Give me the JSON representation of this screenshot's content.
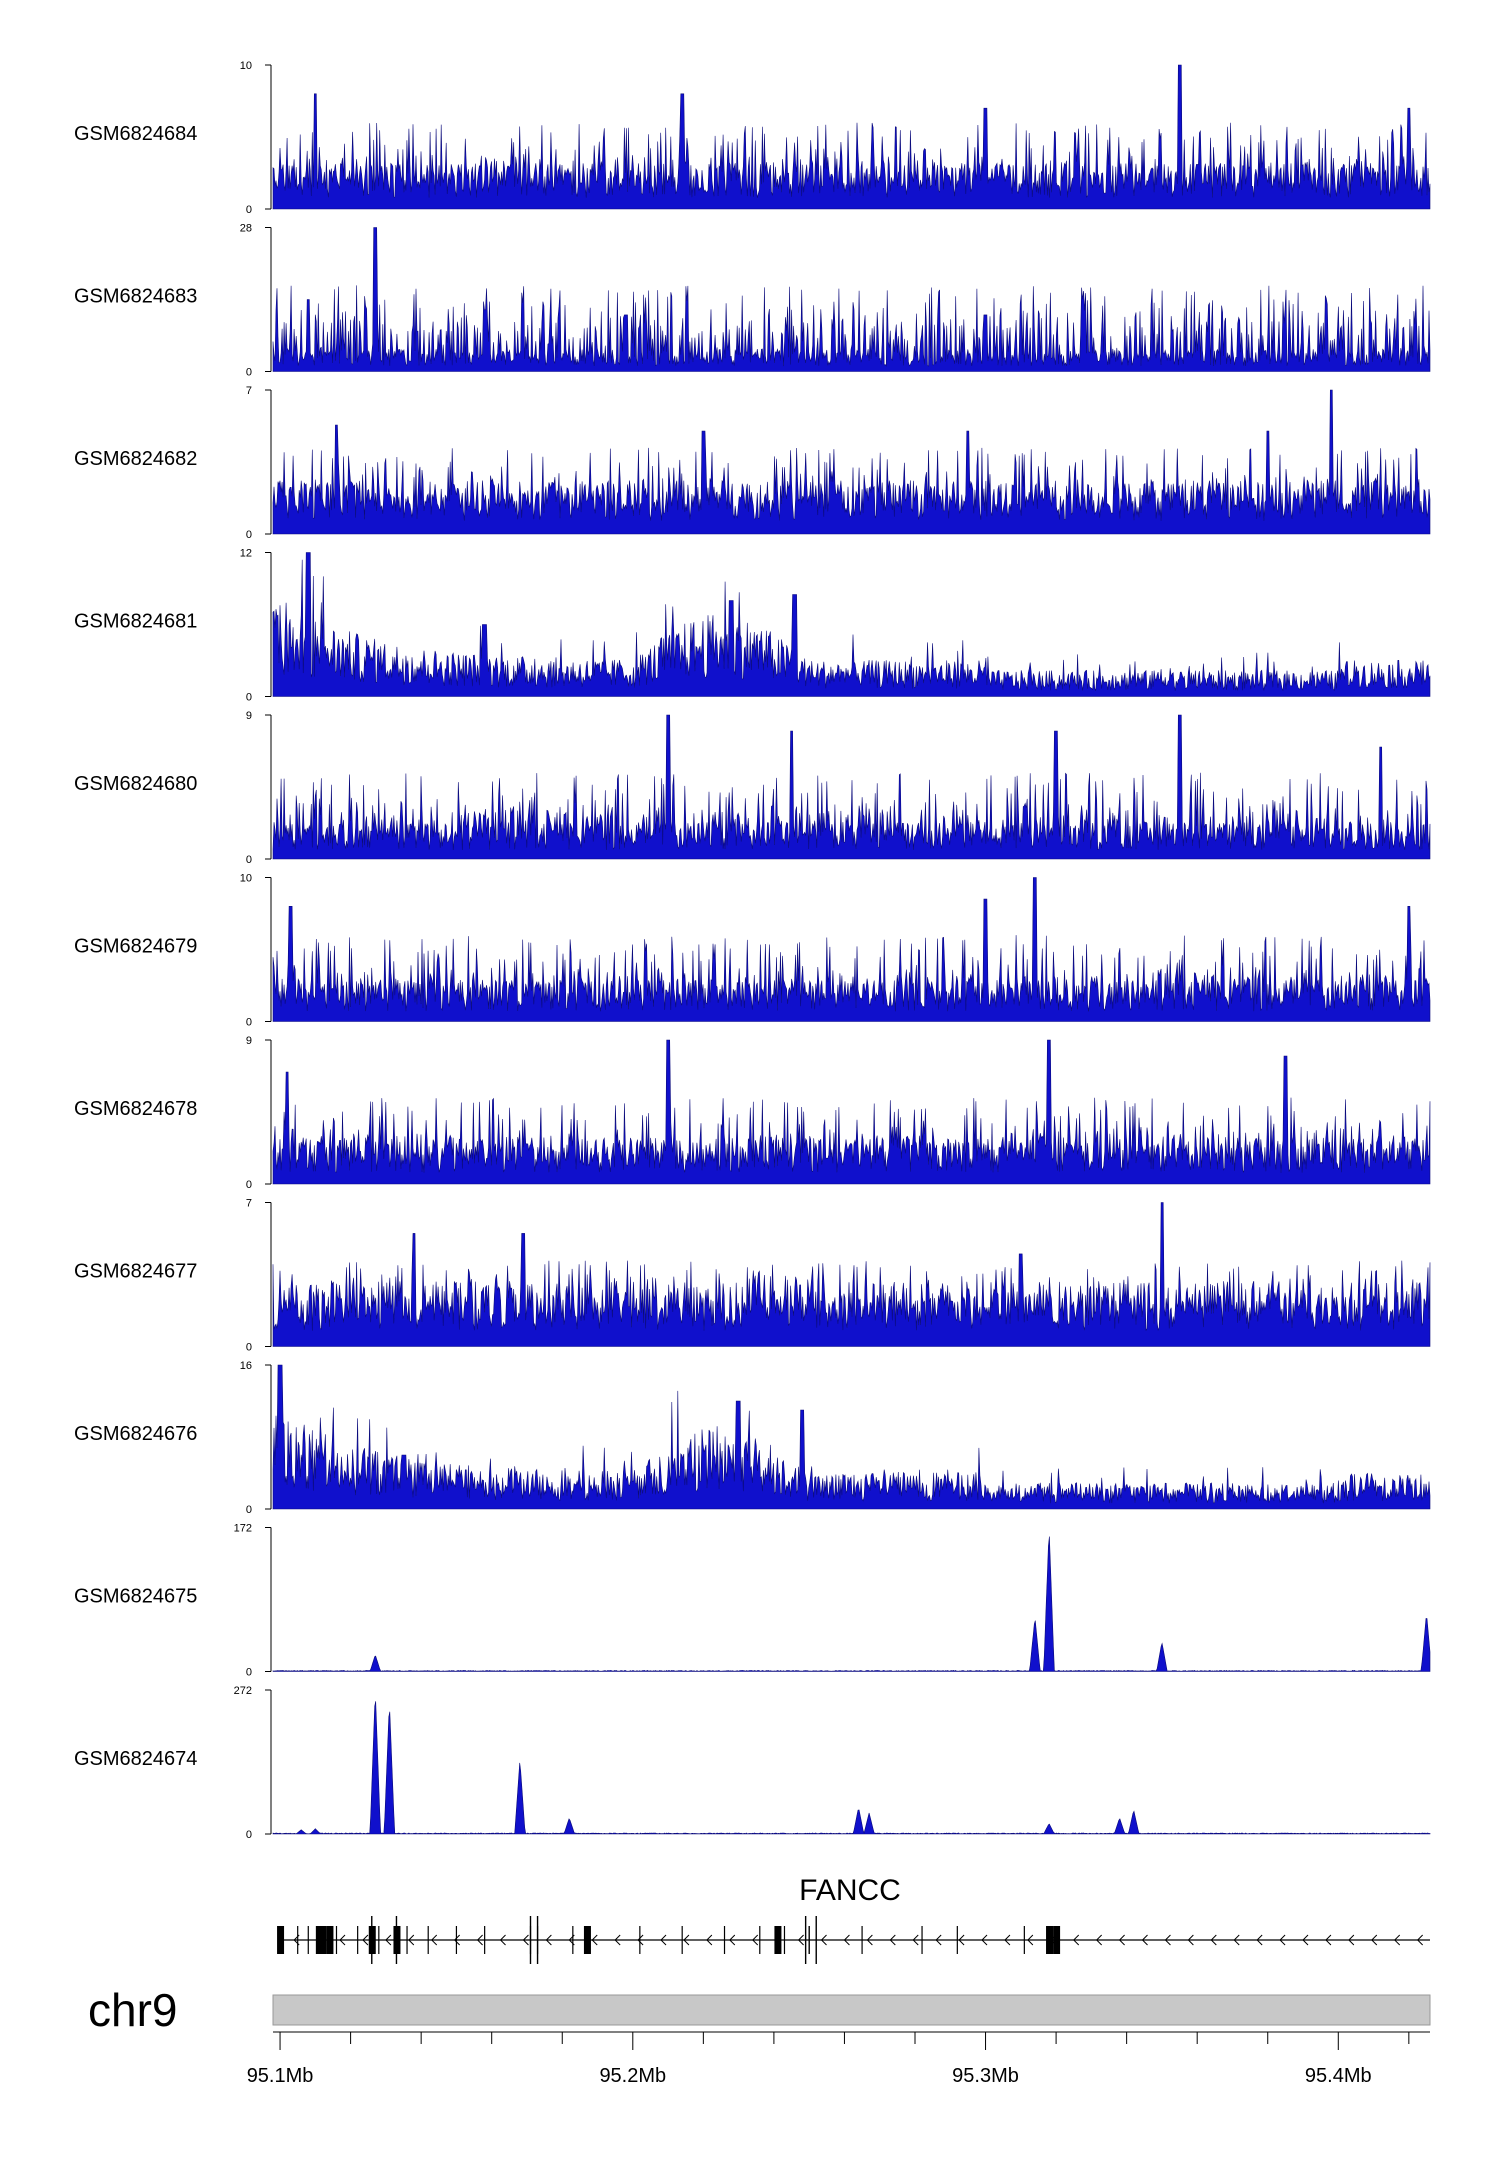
{
  "chart_data": {
    "type": "area",
    "title": "",
    "xlabel": "",
    "ylabel": "",
    "chromosome": "chr9",
    "xlim": [
      95.098,
      95.426
    ],
    "x_unit": "Mb",
    "x_tick_labels": [
      "95.1Mb",
      "95.2Mb",
      "95.3Mb",
      "95.4Mb"
    ],
    "x_labeled_ticks": [
      95.1,
      95.2,
      95.3,
      95.4
    ],
    "x_minor_ticks": [
      95.12,
      95.14,
      95.16,
      95.18,
      95.22,
      95.24,
      95.26,
      95.28,
      95.32,
      95.34,
      95.36,
      95.38,
      95.42
    ],
    "tracks": [
      {
        "name": "GSM6824684",
        "ymax": 10,
        "ymax_label": "10",
        "ymin_label": "0",
        "pattern": "noise",
        "baseline": 2.2,
        "peaks": [
          [
            95.11,
            8
          ],
          [
            95.214,
            8
          ],
          [
            95.3,
            7
          ],
          [
            95.355,
            10
          ],
          [
            95.42,
            7
          ]
        ]
      },
      {
        "name": "GSM6824683",
        "ymax": 28,
        "ymax_label": "28",
        "ymin_label": "0",
        "pattern": "noise",
        "baseline": 3.0,
        "peaks": [
          [
            95.127,
            28
          ],
          [
            95.108,
            14
          ],
          [
            95.158,
            12
          ],
          [
            95.198,
            11
          ],
          [
            95.3,
            11
          ]
        ]
      },
      {
        "name": "GSM6824682",
        "ymax": 7,
        "ymax_label": "7",
        "ymin_label": "0",
        "pattern": "noise",
        "baseline": 1.8,
        "peaks": [
          [
            95.116,
            5.3
          ],
          [
            95.22,
            5
          ],
          [
            95.295,
            5
          ],
          [
            95.398,
            7
          ],
          [
            95.38,
            5
          ]
        ]
      },
      {
        "name": "GSM6824681",
        "ymax": 12,
        "ymax_label": "12",
        "ymin_label": "0",
        "pattern": "decay",
        "baseline": 1.2,
        "peaks": [
          [
            95.108,
            12
          ],
          [
            95.228,
            8
          ],
          [
            95.246,
            8.5
          ],
          [
            95.158,
            6
          ]
        ]
      },
      {
        "name": "GSM6824680",
        "ymax": 9,
        "ymax_label": "9",
        "ymin_label": "0",
        "pattern": "noise",
        "baseline": 1.6,
        "peaks": [
          [
            95.21,
            9
          ],
          [
            95.245,
            8
          ],
          [
            95.32,
            8
          ],
          [
            95.355,
            9
          ],
          [
            95.412,
            7
          ]
        ]
      },
      {
        "name": "GSM6824679",
        "ymax": 10,
        "ymax_label": "10",
        "ymin_label": "0",
        "pattern": "noise",
        "baseline": 2.0,
        "peaks": [
          [
            95.103,
            8
          ],
          [
            95.3,
            8.5
          ],
          [
            95.314,
            10
          ],
          [
            95.42,
            8
          ]
        ]
      },
      {
        "name": "GSM6824678",
        "ymax": 9,
        "ymax_label": "9",
        "ymin_label": "0",
        "pattern": "noise",
        "baseline": 2.0,
        "peaks": [
          [
            95.21,
            9
          ],
          [
            95.318,
            9
          ],
          [
            95.385,
            8
          ],
          [
            95.102,
            7
          ]
        ]
      },
      {
        "name": "GSM6824677",
        "ymax": 7,
        "ymax_label": "7",
        "ymin_label": "0",
        "pattern": "noise",
        "baseline": 2.2,
        "peaks": [
          [
            95.35,
            7
          ],
          [
            95.138,
            5.5
          ],
          [
            95.169,
            5.5
          ],
          [
            95.31,
            4.5
          ]
        ]
      },
      {
        "name": "GSM6824676",
        "ymax": 16,
        "ymax_label": "16",
        "ymin_label": "0",
        "pattern": "decay",
        "baseline": 1.6,
        "peaks": [
          [
            95.1,
            16
          ],
          [
            95.23,
            12
          ],
          [
            95.248,
            11
          ],
          [
            95.135,
            6
          ]
        ]
      },
      {
        "name": "GSM6824675",
        "ymax": 172,
        "ymax_label": "172",
        "ymin_label": "0",
        "pattern": "spikes",
        "baseline": 1.0,
        "peaks": [
          [
            95.127,
            20
          ],
          [
            95.314,
            65
          ],
          [
            95.318,
            172
          ],
          [
            95.35,
            35
          ],
          [
            95.425,
            70
          ]
        ]
      },
      {
        "name": "GSM6824674",
        "ymax": 272,
        "ymax_label": "272",
        "ymin_label": "0",
        "pattern": "spikes",
        "baseline": 1.5,
        "peaks": [
          [
            95.127,
            272
          ],
          [
            95.131,
            250
          ],
          [
            95.168,
            140
          ],
          [
            95.182,
            30
          ],
          [
            95.264,
            50
          ],
          [
            95.267,
            40
          ],
          [
            95.318,
            20
          ],
          [
            95.338,
            30
          ],
          [
            95.342,
            45
          ],
          [
            95.11,
            10
          ],
          [
            95.106,
            8
          ]
        ]
      }
    ],
    "gene": {
      "name": "FANCC",
      "strand": "-",
      "start": 95.1,
      "end": 95.426,
      "exons": [
        95.1,
        95.111,
        95.112,
        95.114,
        95.126,
        95.133,
        95.187,
        95.241,
        95.318,
        95.32
      ]
    },
    "colors": {
      "signal": "#1010cc",
      "signal_dark": "#0a0a7a",
      "gene": "#000000",
      "ideogram": "#c8c8c8",
      "axis": "#000000"
    }
  }
}
